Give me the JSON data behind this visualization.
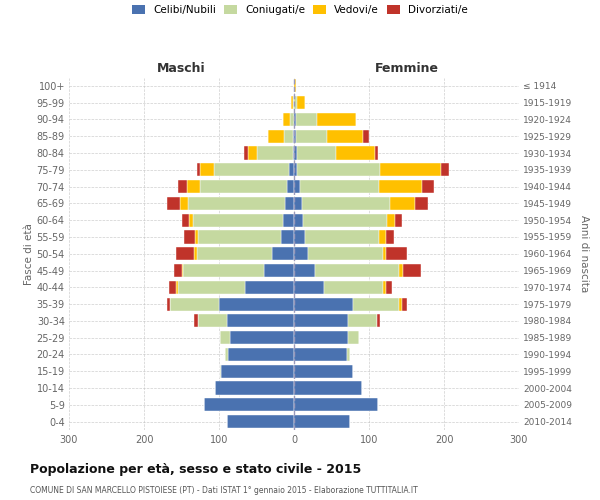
{
  "age_groups": [
    "0-4",
    "5-9",
    "10-14",
    "15-19",
    "20-24",
    "25-29",
    "30-34",
    "35-39",
    "40-44",
    "45-49",
    "50-54",
    "55-59",
    "60-64",
    "65-69",
    "70-74",
    "75-79",
    "80-84",
    "85-89",
    "90-94",
    "95-99",
    "100+"
  ],
  "birth_years": [
    "2010-2014",
    "2005-2009",
    "2000-2004",
    "1995-1999",
    "1990-1994",
    "1985-1989",
    "1980-1984",
    "1975-1979",
    "1970-1974",
    "1965-1969",
    "1960-1964",
    "1955-1959",
    "1950-1954",
    "1945-1949",
    "1940-1944",
    "1935-1939",
    "1930-1934",
    "1925-1929",
    "1920-1924",
    "1915-1919",
    "≤ 1914"
  ],
  "male_celibi": [
    90,
    120,
    105,
    98,
    88,
    85,
    90,
    100,
    65,
    40,
    30,
    18,
    15,
    12,
    10,
    7,
    2,
    1,
    0,
    0,
    0
  ],
  "male_coniugati": [
    0,
    0,
    0,
    1,
    4,
    14,
    38,
    65,
    90,
    108,
    100,
    110,
    120,
    130,
    115,
    100,
    48,
    12,
    5,
    2,
    0
  ],
  "male_vedovi": [
    0,
    0,
    0,
    0,
    0,
    0,
    0,
    0,
    2,
    2,
    3,
    4,
    5,
    10,
    18,
    18,
    12,
    22,
    10,
    2,
    0
  ],
  "male_divorziati": [
    0,
    0,
    0,
    0,
    0,
    0,
    5,
    5,
    10,
    10,
    25,
    15,
    10,
    18,
    12,
    5,
    5,
    0,
    0,
    0,
    0
  ],
  "female_nubili": [
    75,
    112,
    90,
    78,
    70,
    72,
    72,
    78,
    40,
    28,
    18,
    15,
    12,
    10,
    8,
    4,
    4,
    2,
    2,
    0,
    0
  ],
  "female_coniugate": [
    0,
    0,
    0,
    1,
    4,
    14,
    38,
    62,
    78,
    112,
    100,
    98,
    112,
    118,
    105,
    110,
    52,
    42,
    28,
    4,
    0
  ],
  "female_vedove": [
    0,
    0,
    0,
    0,
    0,
    0,
    0,
    4,
    5,
    5,
    5,
    10,
    10,
    33,
    58,
    82,
    52,
    48,
    52,
    10,
    2
  ],
  "female_divorziate": [
    0,
    0,
    0,
    0,
    0,
    0,
    5,
    7,
    8,
    24,
    28,
    10,
    10,
    18,
    15,
    10,
    4,
    8,
    0,
    0,
    0
  ],
  "color_celibi": "#4a72b0",
  "color_coniugati": "#c5d9a0",
  "color_vedovi": "#ffc000",
  "color_divorziati": "#c0332a",
  "title": "Popolazione per età, sesso e stato civile - 2015",
  "subtitle": "COMUNE DI SAN MARCELLO PISTOIESE (PT) - Dati ISTAT 1° gennaio 2015 - Elaborazione TUTTITALIA.IT",
  "label_maschi": "Maschi",
  "label_femmine": "Femmine",
  "ylabel_left": "Fasce di età",
  "ylabel_right": "Anni di nascita",
  "legend_labels": [
    "Celibi/Nubili",
    "Coniugati/e",
    "Vedovi/e",
    "Divorziati/e"
  ],
  "xlim": 300,
  "bg_color": "#ffffff",
  "grid_color": "#bbbbbb"
}
